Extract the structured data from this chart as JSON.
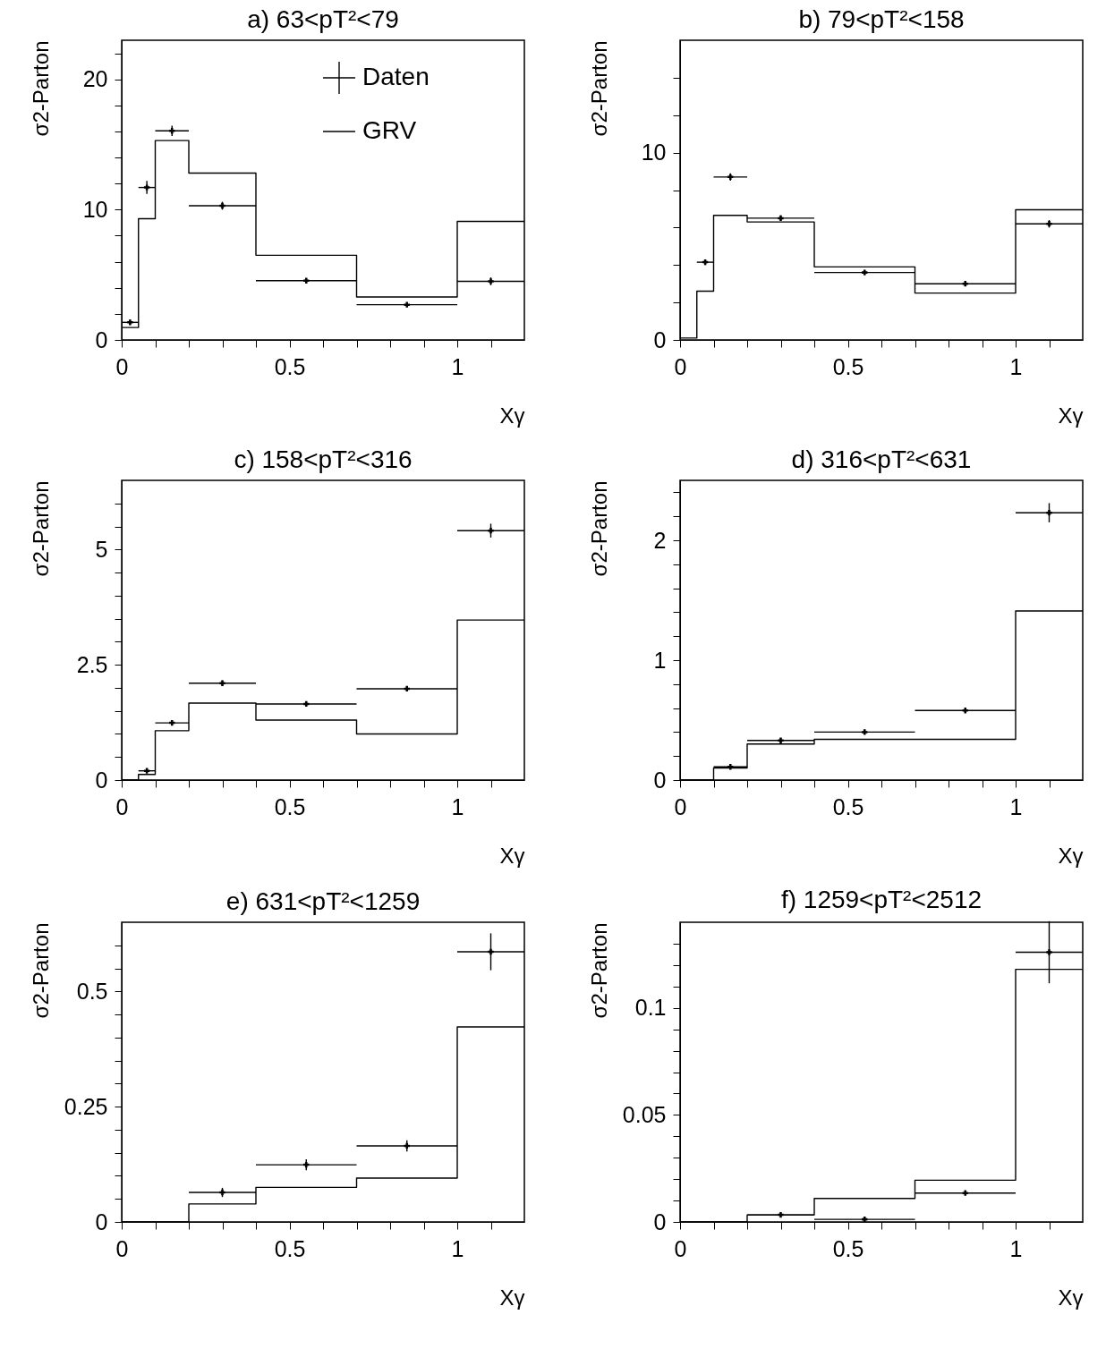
{
  "chart_data": [
    {
      "type": "histogram",
      "title": "a) 63<pT²<79",
      "xlabel": "Xγ",
      "ylabel": "σ2-Parton",
      "legend": "top right",
      "bins": [
        0,
        0.05,
        0.1,
        0.2,
        0.4,
        0.7,
        1.0,
        1.2
      ],
      "xlim": [
        0,
        1.2
      ],
      "xticks": [
        0,
        {
          "value": 0.1,
          "label": null
        },
        {
          "value": 0.2,
          "label": null
        },
        {
          "value": 0.3,
          "label": null
        },
        {
          "value": 0.4,
          "label": null
        },
        0.5,
        {
          "value": 0.6,
          "label": null
        },
        {
          "value": 0.7,
          "label": null
        },
        {
          "value": 0.8,
          "label": null
        },
        {
          "value": 0.9,
          "label": null
        },
        1,
        {
          "value": 1.1,
          "label": null
        }
      ],
      "ylim": [
        0,
        23
      ],
      "yticks": [
        0,
        {
          "value": 2,
          "label": null
        },
        {
          "value": 4,
          "label": null
        },
        {
          "value": 6,
          "label": null
        },
        {
          "value": 8,
          "label": null
        },
        10,
        {
          "value": 12,
          "label": null
        },
        {
          "value": 14,
          "label": null
        },
        {
          "value": 16,
          "label": null
        },
        {
          "value": 18,
          "label": null
        },
        20,
        {
          "value": 22,
          "label": null
        }
      ],
      "series": [
        {
          "name": "Daten",
          "type": "scatter",
          "marker": "cross",
          "color": "#000000",
          "x": [
            0.025,
            0.075,
            0.15,
            0.3,
            0.55,
            0.85,
            1.1
          ],
          "values": [
            1.35,
            11.7,
            16.05,
            10.3,
            4.55,
            2.7,
            4.5
          ],
          "errors": [
            0.2,
            0.5,
            0.4,
            0.3,
            0.15,
            0.1,
            0.3
          ],
          "xerrors": [
            0.025,
            0.025,
            0.05,
            0.1,
            0.15,
            0.15,
            0.1
          ]
        },
        {
          "name": "GRV",
          "color": "#000000",
          "values": [
            0.95,
            9.3,
            15.3,
            12.8,
            6.5,
            3.3,
            9.1
          ]
        }
      ]
    },
    {
      "type": "histogram",
      "title": "b) 79<pT²<158",
      "xlabel": "Xγ",
      "ylabel": "σ2-Parton",
      "bins": [
        0,
        0.05,
        0.1,
        0.2,
        0.4,
        0.7,
        1.0,
        1.2
      ],
      "xlim": [
        0,
        1.2
      ],
      "xticks": [
        0,
        {
          "value": 0.1,
          "label": null
        },
        {
          "value": 0.2,
          "label": null
        },
        {
          "value": 0.3,
          "label": null
        },
        {
          "value": 0.4,
          "label": null
        },
        0.5,
        {
          "value": 0.6,
          "label": null
        },
        {
          "value": 0.7,
          "label": null
        },
        {
          "value": 0.8,
          "label": null
        },
        {
          "value": 0.9,
          "label": null
        },
        1,
        {
          "value": 1.1,
          "label": null
        }
      ],
      "ylim": [
        0,
        16
      ],
      "yticks": [
        0,
        {
          "value": 2,
          "label": null
        },
        {
          "value": 4,
          "label": null
        },
        {
          "value": 6,
          "label": null
        },
        {
          "value": 8,
          "label": null
        },
        10,
        {
          "value": 12,
          "label": null
        },
        {
          "value": 14,
          "label": null
        }
      ],
      "series": [
        {
          "type": "scatter",
          "marker": "cross",
          "color": "#000000",
          "x": [
            0.075,
            0.15,
            0.3,
            0.55,
            0.85,
            1.1
          ],
          "values": [
            4.15,
            8.7,
            6.5,
            3.6,
            3.0,
            6.2
          ],
          "errors": [
            0.15,
            0.2,
            0.15,
            0.08,
            0.07,
            0.2
          ],
          "xerrors": [
            0.025,
            0.05,
            0.1,
            0.15,
            0.15,
            0.1
          ]
        },
        {
          "color": "#000000",
          "values": [
            0.1,
            2.6,
            6.65,
            6.3,
            3.9,
            2.5,
            6.95
          ]
        }
      ]
    },
    {
      "type": "histogram",
      "title": "c) 158<pT²<316",
      "xlabel": "Xγ",
      "ylabel": "σ2-Parton",
      "bins": [
        0,
        0.05,
        0.1,
        0.2,
        0.4,
        0.7,
        1.0,
        1.2
      ],
      "xlim": [
        0,
        1.2
      ],
      "xticks": [
        0,
        {
          "value": 0.1,
          "label": null
        },
        {
          "value": 0.2,
          "label": null
        },
        {
          "value": 0.3,
          "label": null
        },
        {
          "value": 0.4,
          "label": null
        },
        0.5,
        {
          "value": 0.6,
          "label": null
        },
        {
          "value": 0.7,
          "label": null
        },
        {
          "value": 0.8,
          "label": null
        },
        {
          "value": 0.9,
          "label": null
        },
        1,
        {
          "value": 1.1,
          "label": null
        }
      ],
      "ylim": [
        0,
        6.5
      ],
      "yticks": [
        0,
        {
          "value": 0.5,
          "label": null
        },
        {
          "value": 1,
          "label": null
        },
        {
          "value": 1.5,
          "label": null
        },
        {
          "value": 2,
          "label": null
        },
        2.5,
        {
          "value": 3,
          "label": null
        },
        {
          "value": 3.5,
          "label": null
        },
        {
          "value": 4,
          "label": null
        },
        {
          "value": 4.5,
          "label": null
        },
        5,
        {
          "value": 5.5,
          "label": null
        },
        {
          "value": 6,
          "label": null
        }
      ],
      "series": [
        {
          "type": "scatter",
          "marker": "cross",
          "color": "#000000",
          "x": [
            0.075,
            0.15,
            0.3,
            0.55,
            0.85,
            1.1
          ],
          "values": [
            0.2,
            1.24,
            2.1,
            1.65,
            1.98,
            5.41
          ],
          "errors": [
            0.02,
            0.05,
            0.06,
            0.04,
            0.04,
            0.15
          ],
          "xerrors": [
            0.025,
            0.05,
            0.1,
            0.15,
            0.15,
            0.1
          ]
        },
        {
          "color": "#000000",
          "values": [
            0,
            0.12,
            1.07,
            1.67,
            1.3,
            1.0,
            3.47
          ]
        }
      ]
    },
    {
      "type": "histogram",
      "title": "d) 316<pT²<631",
      "xlabel": "Xγ",
      "ylabel": "σ2-Parton",
      "bins": [
        0,
        0.05,
        0.1,
        0.2,
        0.4,
        0.7,
        1.0,
        1.2
      ],
      "xlim": [
        0,
        1.2
      ],
      "xticks": [
        0,
        {
          "value": 0.1,
          "label": null
        },
        {
          "value": 0.2,
          "label": null
        },
        {
          "value": 0.3,
          "label": null
        },
        {
          "value": 0.4,
          "label": null
        },
        0.5,
        {
          "value": 0.6,
          "label": null
        },
        {
          "value": 0.7,
          "label": null
        },
        {
          "value": 0.8,
          "label": null
        },
        {
          "value": 0.9,
          "label": null
        },
        1,
        {
          "value": 1.1,
          "label": null
        }
      ],
      "ylim": [
        0,
        2.5
      ],
      "yticks": [
        0,
        {
          "value": 0.2,
          "label": null
        },
        {
          "value": 0.4,
          "label": null
        },
        {
          "value": 0.6,
          "label": null
        },
        {
          "value": 0.8,
          "label": null
        },
        1,
        {
          "value": 1.2,
          "label": null
        },
        {
          "value": 1.4,
          "label": null
        },
        {
          "value": 1.6,
          "label": null
        },
        {
          "value": 1.8,
          "label": null
        },
        2,
        {
          "value": 2.2,
          "label": null
        },
        {
          "value": 2.4,
          "label": null
        }
      ],
      "series": [
        {
          "type": "scatter",
          "marker": "cross",
          "color": "#000000",
          "x": [
            0.15,
            0.3,
            0.55,
            0.85,
            1.1
          ],
          "values": [
            0.11,
            0.33,
            0.4,
            0.58,
            2.23
          ],
          "errors": [
            0.01,
            0.02,
            0.02,
            0.02,
            0.08
          ],
          "xerrors": [
            0.05,
            0.1,
            0.15,
            0.15,
            0.1
          ]
        },
        {
          "color": "#000000",
          "values": [
            0,
            0,
            0.1,
            0.3,
            0.34,
            0.34,
            1.41
          ]
        }
      ]
    },
    {
      "type": "histogram",
      "title": "e) 631<pT²<1259",
      "xlabel": "Xγ",
      "ylabel": "σ2-Parton",
      "bins": [
        0,
        0.05,
        0.1,
        0.2,
        0.4,
        0.7,
        1.0,
        1.2
      ],
      "xlim": [
        0,
        1.2
      ],
      "xticks": [
        0,
        {
          "value": 0.1,
          "label": null
        },
        {
          "value": 0.2,
          "label": null
        },
        {
          "value": 0.3,
          "label": null
        },
        {
          "value": 0.4,
          "label": null
        },
        0.5,
        {
          "value": 0.6,
          "label": null
        },
        {
          "value": 0.7,
          "label": null
        },
        {
          "value": 0.8,
          "label": null
        },
        {
          "value": 0.9,
          "label": null
        },
        1,
        {
          "value": 1.1,
          "label": null
        }
      ],
      "ylim": [
        0,
        0.65
      ],
      "yticks": [
        0,
        {
          "value": 0.05,
          "label": null
        },
        {
          "value": 0.1,
          "label": null
        },
        {
          "value": 0.15,
          "label": null
        },
        {
          "value": 0.2,
          "label": null
        },
        0.25,
        {
          "value": 0.3,
          "label": null
        },
        {
          "value": 0.35,
          "label": null
        },
        {
          "value": 0.4,
          "label": null
        },
        {
          "value": 0.45,
          "label": null
        },
        0.5,
        {
          "value": 0.55,
          "label": null
        },
        {
          "value": 0.6,
          "label": null
        }
      ],
      "series": [
        {
          "type": "scatter",
          "marker": "cross",
          "color": "#000000",
          "x": [
            0.3,
            0.55,
            0.85,
            1.1
          ],
          "values": [
            0.064,
            0.124,
            0.165,
            0.586
          ],
          "errors": [
            0.01,
            0.012,
            0.012,
            0.04
          ],
          "xerrors": [
            0.1,
            0.15,
            0.15,
            0.1
          ]
        },
        {
          "color": "#000000",
          "values": [
            0,
            0,
            0,
            0.039,
            0.075,
            0.095,
            0.423
          ]
        }
      ]
    },
    {
      "type": "histogram",
      "title": "f) 1259<pT²<2512",
      "xlabel": "Xγ",
      "ylabel": "σ2-Parton",
      "bins": [
        0,
        0.05,
        0.1,
        0.2,
        0.4,
        0.7,
        1.0,
        1.2
      ],
      "xlim": [
        0,
        1.2
      ],
      "xticks": [
        0,
        {
          "value": 0.1,
          "label": null
        },
        {
          "value": 0.2,
          "label": null
        },
        {
          "value": 0.3,
          "label": null
        },
        {
          "value": 0.4,
          "label": null
        },
        0.5,
        {
          "value": 0.6,
          "label": null
        },
        {
          "value": 0.7,
          "label": null
        },
        {
          "value": 0.8,
          "label": null
        },
        {
          "value": 0.9,
          "label": null
        },
        1,
        {
          "value": 1.1,
          "label": null
        }
      ],
      "ylim": [
        0,
        0.14
      ],
      "yticks": [
        0,
        {
          "value": 0.01,
          "label": null
        },
        {
          "value": 0.02,
          "label": null
        },
        {
          "value": 0.03,
          "label": null
        },
        {
          "value": 0.04,
          "label": null
        },
        0.05,
        {
          "value": 0.06,
          "label": null
        },
        {
          "value": 0.07,
          "label": null
        },
        {
          "value": 0.08,
          "label": null
        },
        {
          "value": 0.09,
          "label": null
        },
        0.1,
        {
          "value": 0.11,
          "label": null
        },
        {
          "value": 0.12,
          "label": null
        },
        {
          "value": 0.13,
          "label": null
        }
      ],
      "series": [
        {
          "type": "scatter",
          "marker": "cross",
          "color": "#000000",
          "x": [
            0.3,
            0.55,
            0.85,
            1.1
          ],
          "values": [
            0.0033,
            0.0012,
            0.0135,
            0.126
          ],
          "errors": [
            null,
            null,
            0.001,
            0.0145
          ],
          "xerrors": [
            0.1,
            0.15,
            0.15,
            0.1
          ]
        },
        {
          "color": "#000000",
          "values": [
            0,
            0,
            0,
            0.0033,
            0.011,
            0.0195,
            0.118
          ]
        }
      ]
    }
  ]
}
